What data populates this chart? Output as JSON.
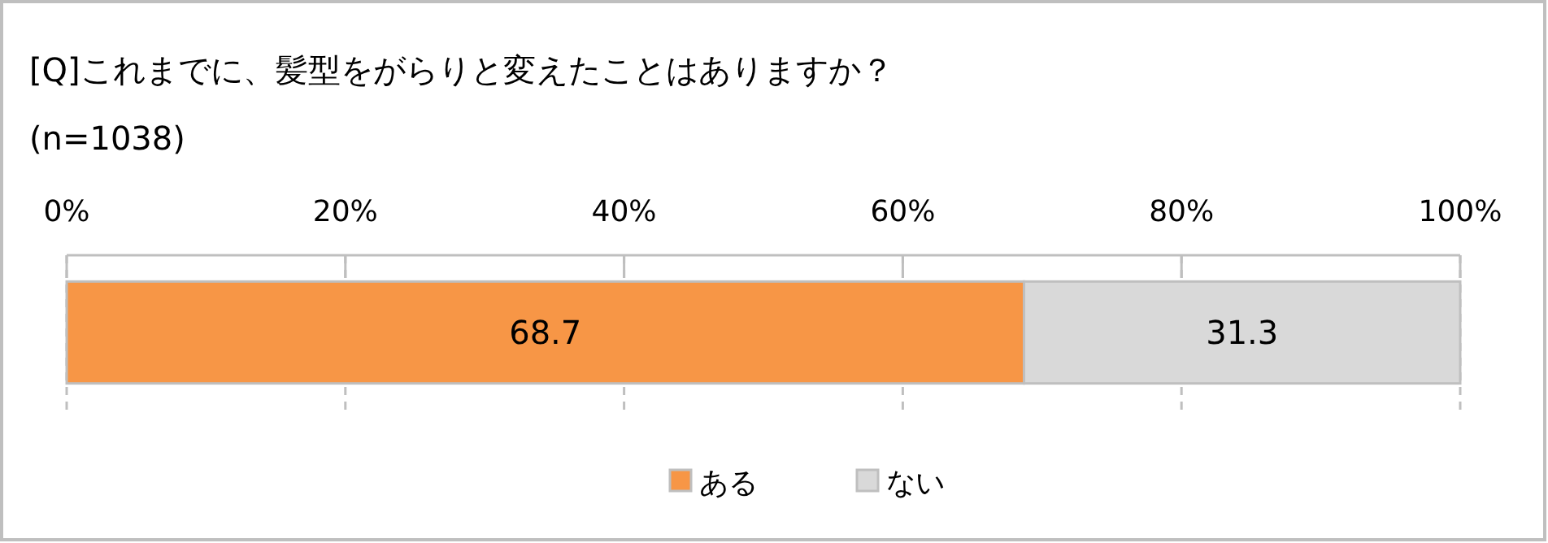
{
  "chart_data": {
    "type": "bar",
    "orientation": "horizontal",
    "stacked": true,
    "title": "[Q]これまでに、髪型をがらりと変えたことはありますか？",
    "subtitle": "(n=1038)",
    "categories": [
      null
    ],
    "series": [
      {
        "name": "ある",
        "color": "#f79646",
        "values": [
          68.7
        ]
      },
      {
        "name": "ない",
        "color": "#d9d9d9",
        "values": [
          31.3
        ]
      }
    ],
    "xlim": [
      0,
      100
    ],
    "xticks": [
      {
        "value": 0,
        "label": "0%"
      },
      {
        "value": 20,
        "label": "20%"
      },
      {
        "value": 40,
        "label": "40%"
      },
      {
        "value": 60,
        "label": "60%"
      },
      {
        "value": 80,
        "label": "80%"
      },
      {
        "value": 100,
        "label": "100%"
      }
    ],
    "grid": "x",
    "data_labels": true,
    "legend": "bottom"
  }
}
